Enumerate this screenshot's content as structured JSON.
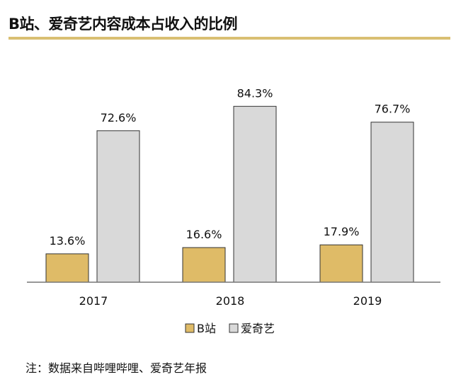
{
  "title": "B站、爱奇艺内容成本占收入的比例",
  "note": "注：数据来自哔哩哔哩、爱奇艺年报",
  "chart_data": {
    "type": "bar",
    "title": "B站、爱奇艺内容成本占收入的比例",
    "categories": [
      "2017",
      "2018",
      "2019"
    ],
    "series": [
      {
        "name": "B站",
        "values": [
          13.6,
          16.6,
          17.9
        ],
        "labels": [
          "13.6%",
          "16.6%",
          "17.9%"
        ],
        "color": "#dfbb67"
      },
      {
        "name": "爱奇艺",
        "values": [
          72.6,
          84.3,
          76.7
        ],
        "labels": [
          "72.6%",
          "84.3%",
          "76.7%"
        ],
        "color": "#d9d9d9"
      }
    ],
    "ylim": [
      0,
      100
    ],
    "grid": false,
    "legend": "bottom",
    "xlabel": "",
    "ylabel": ""
  }
}
